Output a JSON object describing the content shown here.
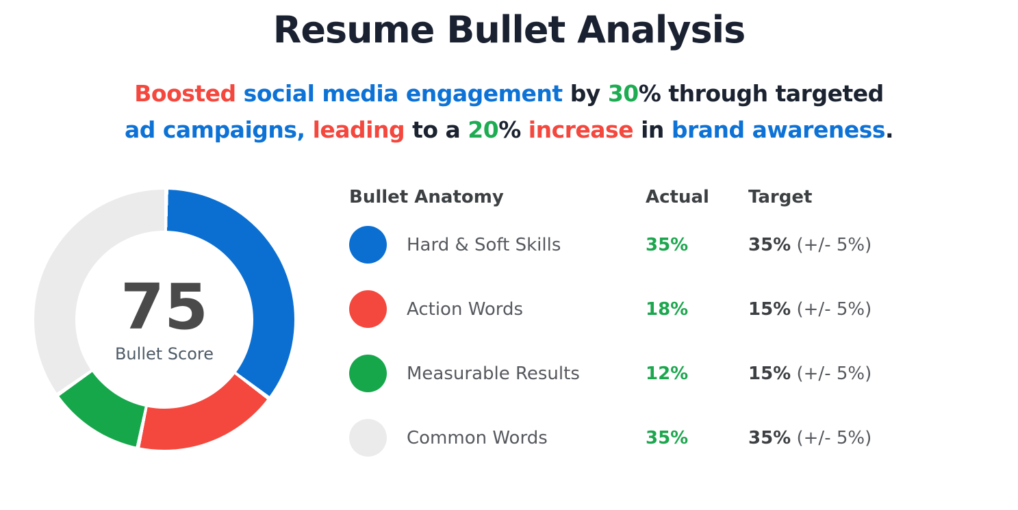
{
  "page": {
    "title": "Resume Bullet Analysis"
  },
  "palette": {
    "red": "#f4473d",
    "blue": "#0d72d6",
    "green": "#1dac52",
    "dark": "#1b2230",
    "actual_green": "#1ca64e"
  },
  "headline": {
    "lines": [
      [
        {
          "text": "Boosted ",
          "color": "red"
        },
        {
          "text": "social media engagement ",
          "color": "blue"
        },
        {
          "text": "by ",
          "color": "dark"
        },
        {
          "text": "30",
          "color": "green"
        },
        {
          "text": "% ",
          "color": "dark"
        },
        {
          "text": "through targeted",
          "color": "dark"
        }
      ],
      [
        {
          "text": "ad campaigns, ",
          "color": "blue"
        },
        {
          "text": "leading ",
          "color": "red"
        },
        {
          "text": "to a ",
          "color": "dark"
        },
        {
          "text": "20",
          "color": "green"
        },
        {
          "text": "% ",
          "color": "dark"
        },
        {
          "text": "increase ",
          "color": "red"
        },
        {
          "text": "in ",
          "color": "dark"
        },
        {
          "text": "brand awareness",
          "color": "blue"
        },
        {
          "text": ".",
          "color": "dark"
        }
      ]
    ]
  },
  "chart_data": {
    "type": "donut",
    "title": "Bullet Anatomy",
    "center_value": "75",
    "center_label": "Bullet Score",
    "start_angle_deg": 0,
    "direction": "clockwise",
    "segment_gap_deg": 1.8,
    "segments": [
      {
        "label": "Hard & Soft Skills",
        "value": 35,
        "color": "#0b6fd2"
      },
      {
        "label": "Action Words",
        "value": 18,
        "color": "#f4473d"
      },
      {
        "label": "Measurable Results",
        "value": 12,
        "color": "#16a74b"
      },
      {
        "label": "Common Words",
        "value": 35,
        "color": "#ebebeb"
      }
    ]
  },
  "legend": {
    "headers": {
      "anatomy": "Bullet Anatomy",
      "actual": "Actual",
      "target": "Target"
    },
    "rows": [
      {
        "label": "Hard & Soft Skills",
        "actual": "35%",
        "target": "35%",
        "tolerance": "(+/- 5%)"
      },
      {
        "label": "Action Words",
        "actual": "18%",
        "target": "15%",
        "tolerance": "(+/- 5%)"
      },
      {
        "label": "Measurable Results",
        "actual": "12%",
        "target": "15%",
        "tolerance": "(+/- 5%)"
      },
      {
        "label": "Common Words",
        "actual": "35%",
        "target": "35%",
        "tolerance": "(+/- 5%)"
      }
    ]
  }
}
